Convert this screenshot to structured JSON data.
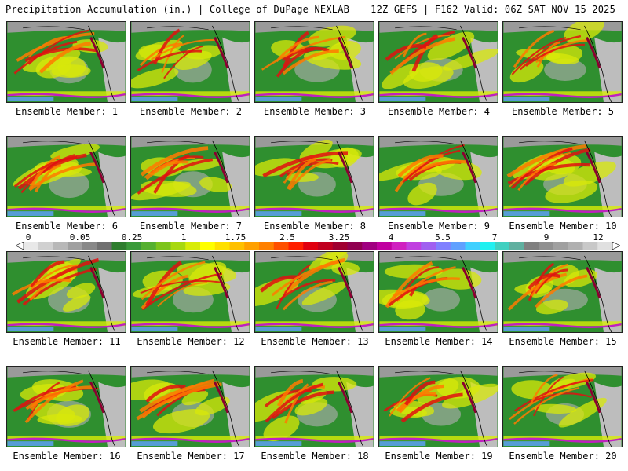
{
  "header": {
    "title": "Precipitation Accumulation (in.) | College of DuPage NEXLAB",
    "run_info": "12Z GEFS | F162 Valid: 06Z SAT NOV 15 2025"
  },
  "colorbar": {
    "tick_labels": [
      "0",
      "0.05",
      "0.25",
      "1",
      "1.75",
      "2.5",
      "3.25",
      "4",
      "5.5",
      "7",
      "9",
      "12"
    ],
    "colors": [
      "#e8e8e8",
      "#d0d0d0",
      "#b8b8b8",
      "#a0a0a0",
      "#888888",
      "#707070",
      "#2e7d2e",
      "#3a9a3a",
      "#55b030",
      "#7cc41c",
      "#a8d810",
      "#d8ec08",
      "#ffff00",
      "#ffe000",
      "#ffc000",
      "#ffa000",
      "#ff8000",
      "#ff5000",
      "#ff2000",
      "#e00010",
      "#c00020",
      "#a00030",
      "#900050",
      "#a00080",
      "#c000a0",
      "#d020c0",
      "#c040e0",
      "#a060f0",
      "#8080ff",
      "#60a0ff",
      "#40d0ff",
      "#20f0f0",
      "#40d0c0",
      "#60b0a0",
      "#808080",
      "#909090",
      "#a0a0a0",
      "#b0b0b0",
      "#c8c8c8",
      "#e0e0e0"
    ]
  },
  "members": [
    {
      "label": "Ensemble Member: 1"
    },
    {
      "label": "Ensemble Member: 2"
    },
    {
      "label": "Ensemble Member: 3"
    },
    {
      "label": "Ensemble Member: 4"
    },
    {
      "label": "Ensemble Member: 5"
    },
    {
      "label": "Ensemble Member: 6"
    },
    {
      "label": "Ensemble Member: 7"
    },
    {
      "label": "Ensemble Member: 8"
    },
    {
      "label": "Ensemble Member: 9"
    },
    {
      "label": "Ensemble Member: 10"
    },
    {
      "label": "Ensemble Member: 11"
    },
    {
      "label": "Ensemble Member: 12"
    },
    {
      "label": "Ensemble Member: 13"
    },
    {
      "label": "Ensemble Member: 14"
    },
    {
      "label": "Ensemble Member: 15"
    },
    {
      "label": "Ensemble Member: 16"
    },
    {
      "label": "Ensemble Member: 17"
    },
    {
      "label": "Ensemble Member: 18"
    },
    {
      "label": "Ensemble Member: 19"
    },
    {
      "label": "Ensemble Member: 20"
    }
  ]
}
